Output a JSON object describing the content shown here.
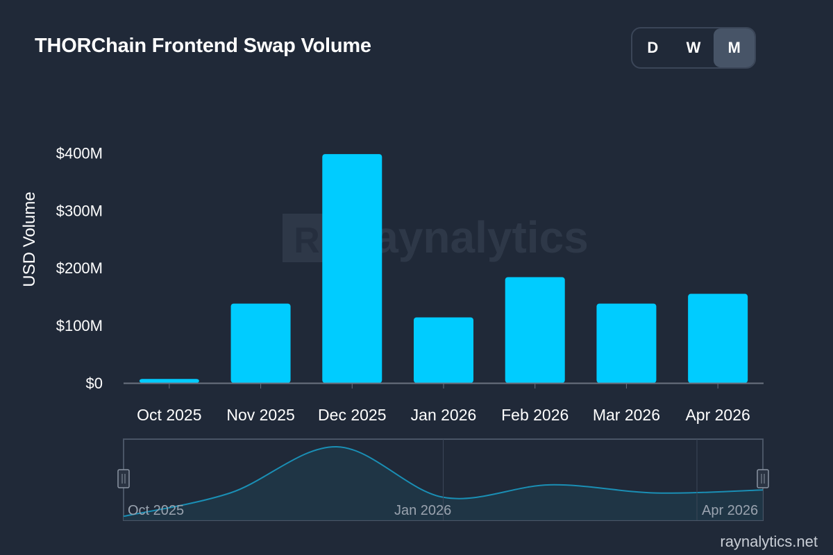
{
  "title": "THORChain Frontend Swap Volume",
  "range_toggle": {
    "options": [
      "D",
      "W",
      "M"
    ],
    "selected": "M"
  },
  "watermark": "Raynalytics",
  "footer": "raynalytics.net",
  "colors": {
    "background": "#202938",
    "bar": "#00ccff",
    "axis": "#6b7280",
    "navigator_line": "#1a8fb5",
    "navigator_fill": "#1f3647"
  },
  "chart_data": {
    "type": "bar",
    "categories": [
      "Oct 2025",
      "Nov 2025",
      "Dec 2025",
      "Jan 2026",
      "Feb 2026",
      "Mar 2026",
      "Apr 2026"
    ],
    "values": [
      7,
      138,
      398,
      114,
      184,
      138,
      155
    ],
    "ylabel": "USD Volume",
    "ylim": [
      0,
      420
    ],
    "y_ticks": [
      0,
      100,
      200,
      300,
      400
    ],
    "y_tick_labels": [
      "$0",
      "$100M",
      "$200M",
      "$300M",
      "$400M"
    ],
    "grid": false,
    "navigator": {
      "labels": [
        "Oct 2025",
        "Jan 2026",
        "Apr 2026"
      ]
    }
  }
}
